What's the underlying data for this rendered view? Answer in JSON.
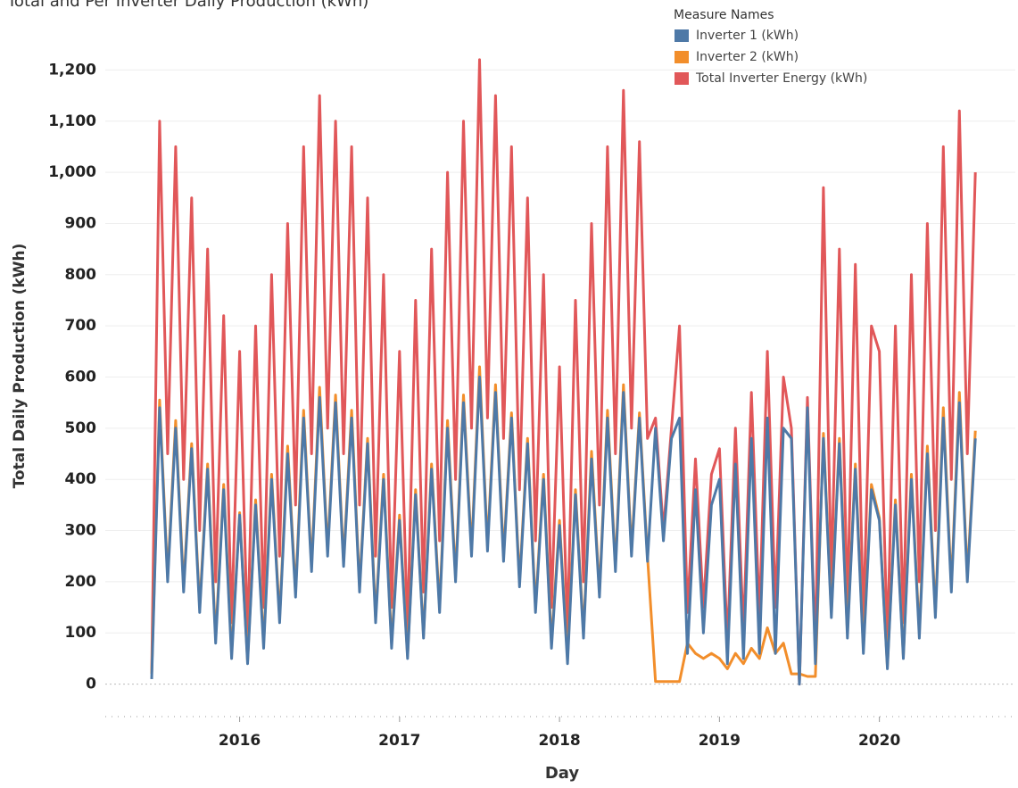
{
  "chart_data": {
    "type": "line",
    "title": "Total and Per Inverter Daily Production (kWh)",
    "xlabel": "Day",
    "ylabel": "Total Daily Production (kWh)",
    "legend_title": "Measure Names",
    "legend": "top-right",
    "grid": true,
    "xlim": [
      2015.16,
      2020.85
    ],
    "xticks": [
      2016,
      2017,
      2018,
      2019,
      2020
    ],
    "ylim": [
      -60,
      1260
    ],
    "yticks": [
      0,
      100,
      200,
      300,
      400,
      500,
      600,
      700,
      800,
      900,
      {
        "value": 1000,
        "label": "1,000"
      },
      {
        "value": 1100,
        "label": "1,100"
      },
      {
        "value": 1200,
        "label": "1,200"
      }
    ],
    "x": [
      2015.45,
      2015.5,
      2015.55,
      2015.6,
      2015.65,
      2015.7,
      2015.75,
      2015.8,
      2015.85,
      2015.9,
      2015.95,
      2016,
      2016.05,
      2016.1,
      2016.15,
      2016.2,
      2016.25,
      2016.3,
      2016.35,
      2016.4,
      2016.45,
      2016.5,
      2016.55,
      2016.6,
      2016.65,
      2016.7,
      2016.75,
      2016.8,
      2016.85,
      2016.9,
      2016.95,
      2017,
      2017.05,
      2017.1,
      2017.15,
      2017.2,
      2017.25,
      2017.3,
      2017.35,
      2017.4,
      2017.45,
      2017.5,
      2017.55,
      2017.6,
      2017.65,
      2017.7,
      2017.75,
      2017.8,
      2017.85,
      2017.9,
      2017.95,
      2018,
      2018.05,
      2018.1,
      2018.15,
      2018.2,
      2018.25,
      2018.3,
      2018.35,
      2018.4,
      2018.45,
      2018.5,
      2018.55,
      2018.6,
      2018.65,
      2018.7,
      2018.75,
      2018.8,
      2018.85,
      2018.9,
      2018.95,
      2019,
      2019.05,
      2019.1,
      2019.15,
      2019.2,
      2019.25,
      2019.3,
      2019.35,
      2019.4,
      2019.45,
      2019.5,
      2019.55,
      2019.6,
      2019.65,
      2019.7,
      2019.75,
      2019.8,
      2019.85,
      2019.9,
      2019.95,
      2020,
      2020.05,
      2020.1,
      2020.15,
      2020.2,
      2020.25,
      2020.3,
      2020.35,
      2020.4,
      2020.45,
      2020.5,
      2020.55,
      2020.6
    ],
    "series": [
      {
        "name": "Total Inverter Energy (kWh)",
        "color": "#e15759",
        "values": [
          20,
          1100,
          450,
          1050,
          400,
          950,
          300,
          850,
          200,
          720,
          120,
          650,
          90,
          700,
          150,
          800,
          250,
          900,
          350,
          1050,
          450,
          1150,
          500,
          1100,
          450,
          1050,
          350,
          950,
          250,
          800,
          150,
          650,
          100,
          750,
          180,
          850,
          280,
          1000,
          400,
          1100,
          500,
          1220,
          520,
          1150,
          480,
          1050,
          380,
          950,
          280,
          800,
          150,
          620,
          100,
          750,
          200,
          900,
          350,
          1050,
          450,
          1160,
          500,
          1060,
          480,
          520,
          300,
          500,
          700,
          140,
          440,
          150,
          410,
          460,
          80,
          500,
          100,
          570,
          130,
          650,
          150,
          600,
          500,
          0,
          560,
          60,
          970,
          200,
          850,
          150,
          820,
          120,
          700,
          650,
          80,
          700,
          120,
          800,
          200,
          900,
          300,
          1050,
          400,
          1120,
          450,
          1000
        ]
      },
      {
        "name": "Inverter 2 (kWh)",
        "color": "#f28e2b",
        "values": [
          20,
          555,
          210,
          515,
          190,
          470,
          150,
          430,
          90,
          390,
          60,
          335,
          45,
          360,
          80,
          410,
          130,
          465,
          180,
          535,
          230,
          580,
          260,
          565,
          240,
          535,
          190,
          480,
          130,
          410,
          80,
          330,
          55,
          380,
          95,
          430,
          150,
          515,
          210,
          565,
          260,
          620,
          270,
          585,
          250,
          530,
          200,
          480,
          150,
          410,
          80,
          320,
          50,
          380,
          100,
          455,
          180,
          535,
          230,
          585,
          260,
          530,
          250,
          5,
          5,
          5,
          5,
          80,
          60,
          50,
          60,
          50,
          30,
          60,
          40,
          70,
          50,
          110,
          60,
          80,
          20,
          20,
          15,
          15,
          490,
          140,
          480,
          100,
          430,
          70,
          390,
          325,
          35,
          360,
          55,
          410,
          100,
          465,
          140,
          540,
          190,
          570,
          210,
          495
        ]
      },
      {
        "name": "Inverter 1 (kWh)",
        "color": "#4e79a7",
        "values": [
          10,
          540,
          200,
          500,
          180,
          460,
          140,
          420,
          80,
          380,
          50,
          330,
          40,
          350,
          70,
          400,
          120,
          450,
          170,
          520,
          220,
          560,
          250,
          550,
          230,
          520,
          180,
          470,
          120,
          400,
          70,
          320,
          50,
          370,
          90,
          420,
          140,
          500,
          200,
          550,
          250,
          600,
          260,
          570,
          240,
          520,
          190,
          470,
          140,
          400,
          70,
          310,
          40,
          370,
          90,
          440,
          170,
          520,
          220,
          570,
          250,
          520,
          240,
          500,
          280,
          480,
          520,
          60,
          380,
          100,
          350,
          400,
          40,
          430,
          50,
          480,
          60,
          520,
          60,
          500,
          480,
          0,
          540,
          40,
          480,
          130,
          470,
          90,
          420,
          60,
          380,
          320,
          30,
          350,
          50,
          400,
          90,
          450,
          130,
          520,
          180,
          550,
          200,
          480
        ]
      }
    ],
    "legend_order": [
      2,
      1,
      0
    ]
  }
}
